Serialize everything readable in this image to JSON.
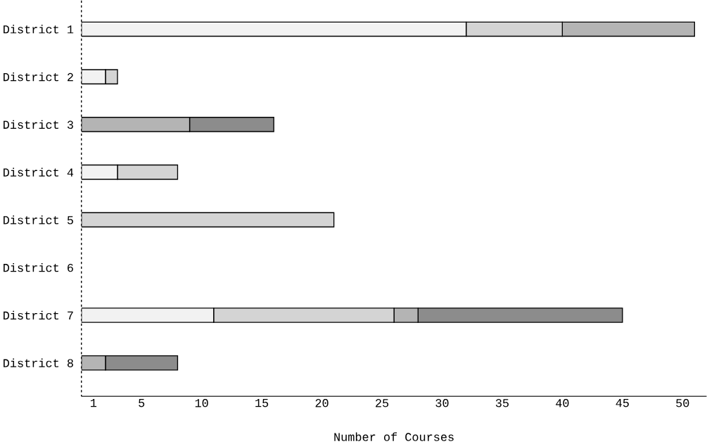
{
  "chart_data": {
    "type": "bar",
    "orientation": "horizontal",
    "stacked": true,
    "xlabel": "Number of Courses",
    "categories": [
      "District 1",
      "District 2",
      "District 3",
      "District 4",
      "District 5",
      "District 6",
      "District 7",
      "District 8"
    ],
    "series": [
      {
        "color": "#f2f2f2",
        "values": [
          32,
          2,
          0,
          3,
          0,
          0,
          11,
          0
        ]
      },
      {
        "color": "#d4d4d4",
        "values": [
          8,
          1,
          0,
          5,
          21,
          0,
          15,
          0
        ]
      },
      {
        "color": "#b4b4b4",
        "values": [
          11,
          0,
          9,
          0,
          0,
          0,
          2,
          2
        ]
      },
      {
        "color": "#8c8c8c",
        "values": [
          0,
          0,
          7,
          0,
          0,
          0,
          17,
          6
        ]
      }
    ],
    "xlim": [
      0,
      52
    ],
    "xticks": [
      1,
      5,
      10,
      15,
      20,
      25,
      30,
      35,
      40,
      45,
      50
    ],
    "grid": false
  }
}
